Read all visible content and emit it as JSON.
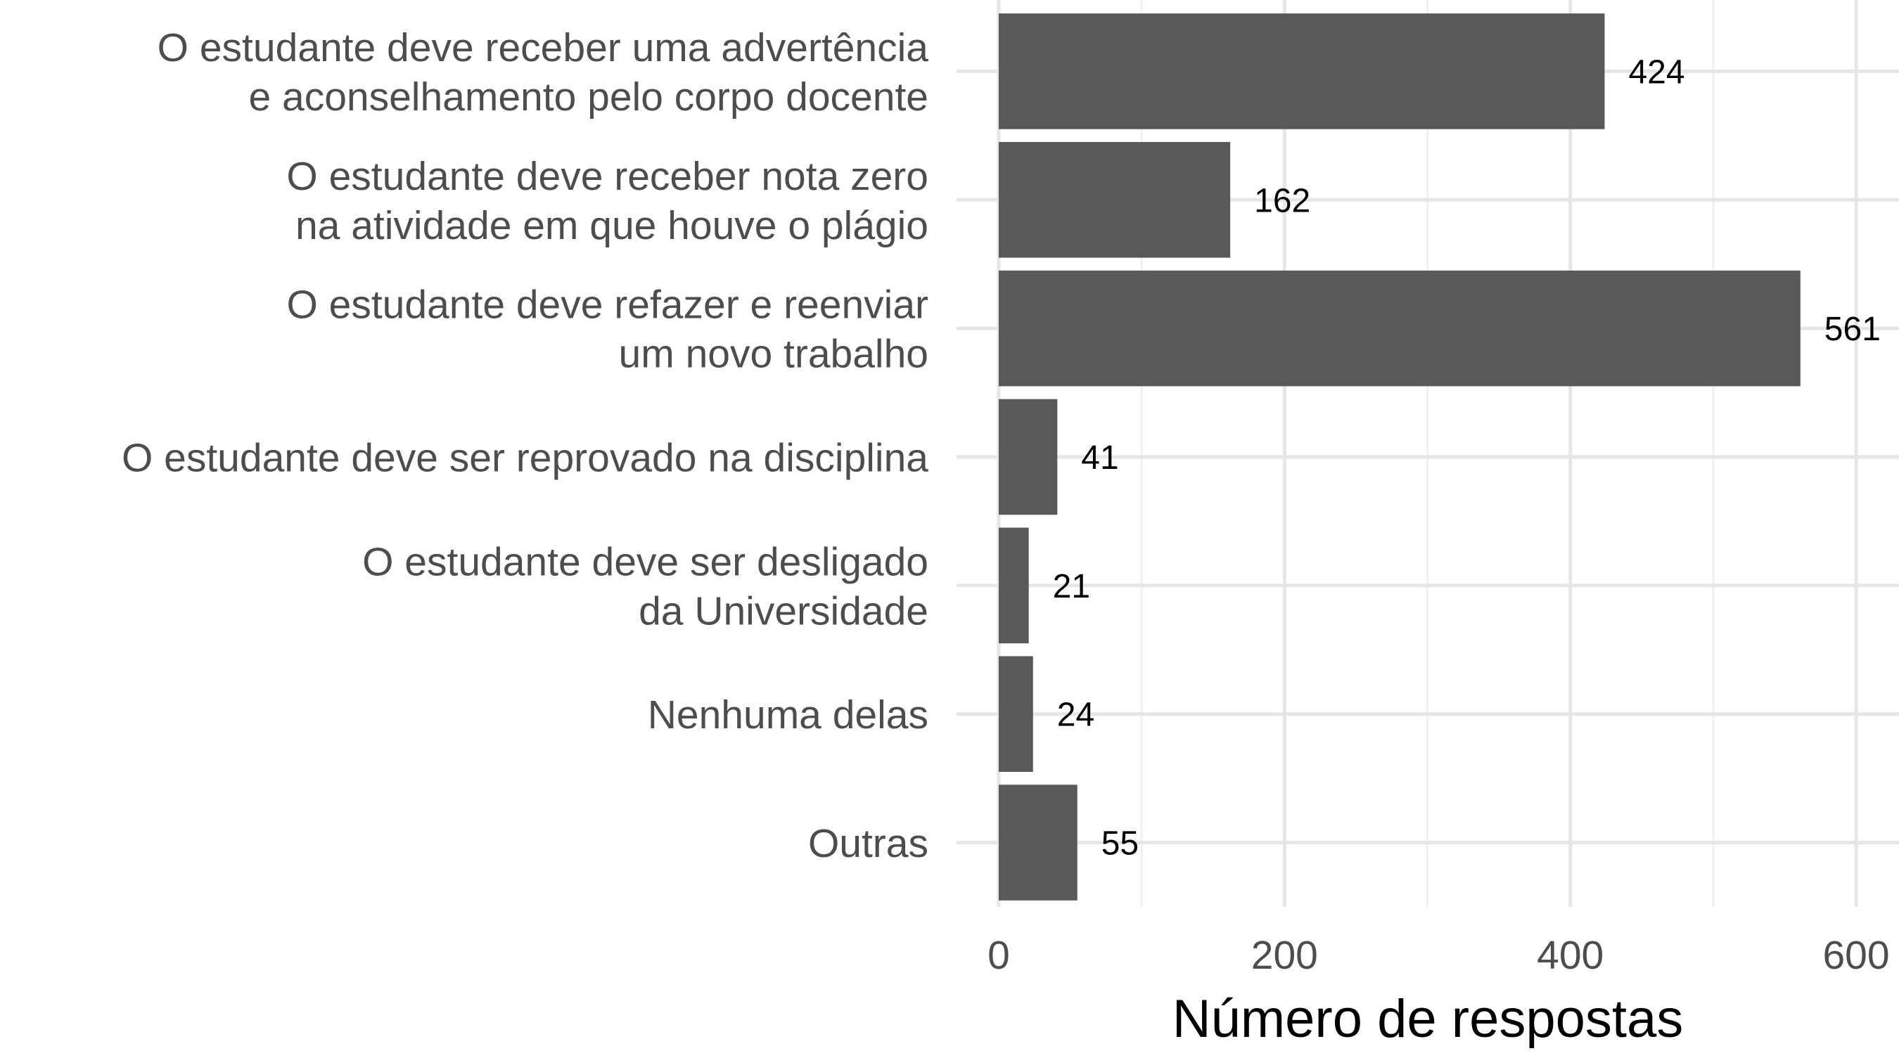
{
  "chart_data": {
    "type": "bar",
    "orientation": "horizontal",
    "categories": [
      [
        "O estudante deve receber uma advertência",
        "e aconselhamento pelo corpo docente"
      ],
      [
        "O estudante deve receber nota zero",
        "na atividade em que houve o plágio"
      ],
      [
        "O estudante deve refazer e reenviar",
        "um novo trabalho"
      ],
      [
        "O estudante deve ser reprovado na disciplina"
      ],
      [
        "O estudante deve ser desligado",
        "da Universidade"
      ],
      [
        "Nenhuma delas"
      ],
      [
        "Outras"
      ]
    ],
    "values": [
      424,
      162,
      561,
      41,
      21,
      24,
      55
    ],
    "data_labels": [
      "424",
      "162",
      "561",
      "41",
      "21",
      "24",
      "55"
    ],
    "title": "",
    "xlabel": "Número de respostas",
    "ylabel": "",
    "xlim": [
      0,
      630
    ],
    "xticks": [
      0,
      200,
      400,
      600
    ],
    "xtick_labels": [
      "0",
      "200",
      "400",
      "600"
    ],
    "grid": true,
    "legend": "none",
    "colors": {
      "bar": "#595959",
      "grid_major": "#e6e6e6",
      "grid_minor": "#f1f1f1",
      "axis_text": "#4d4d4d",
      "title_text": "#000000",
      "data_label_text": "#000000"
    }
  }
}
